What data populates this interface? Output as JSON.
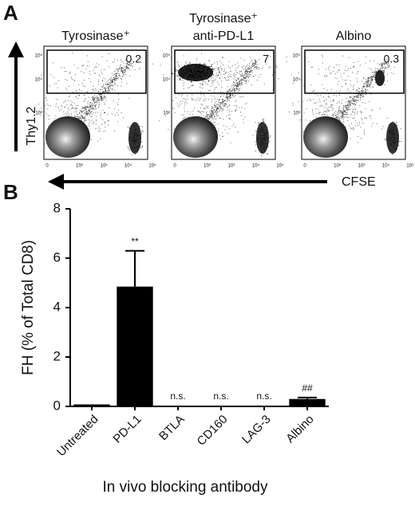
{
  "panel_a": {
    "label": "A",
    "plots": [
      {
        "title_lines": [
          "Tyrosinase⁺"
        ],
        "gate_value": 0.2
      },
      {
        "title_lines": [
          "Tyrosinase⁺",
          "anti-PD-L1"
        ],
        "gate_value": 7
      },
      {
        "title_lines": [
          "Albino"
        ],
        "gate_value": 0.3
      }
    ],
    "x_axis_label": "CFSE",
    "y_axis_label": "Thy1.2",
    "xticks": [
      "0",
      "10²",
      "10³",
      "10⁴",
      "10⁵"
    ],
    "yticks": [
      "10⁵",
      "10⁴",
      "10³"
    ]
  },
  "chart_data": {
    "type": "bar",
    "panel_label": "B",
    "categories": [
      "Untreated",
      "PD-L1",
      "BTLA",
      "CD160",
      "LAG-3",
      "Albino"
    ],
    "values": [
      0.08,
      4.85,
      0.03,
      0.03,
      0.03,
      0.3
    ],
    "errors": [
      null,
      1.45,
      null,
      null,
      null,
      0.06
    ],
    "annotations": [
      null,
      "**",
      "n.s.",
      "n.s.",
      "n.s.",
      "##"
    ],
    "color": "#000000",
    "ylabel": "FH (% of Total CD8)",
    "xlabel": "In vivo blocking antibody",
    "ylim": [
      0,
      8
    ],
    "yticks": [
      0,
      2,
      4,
      6,
      8
    ],
    "grid": false
  }
}
